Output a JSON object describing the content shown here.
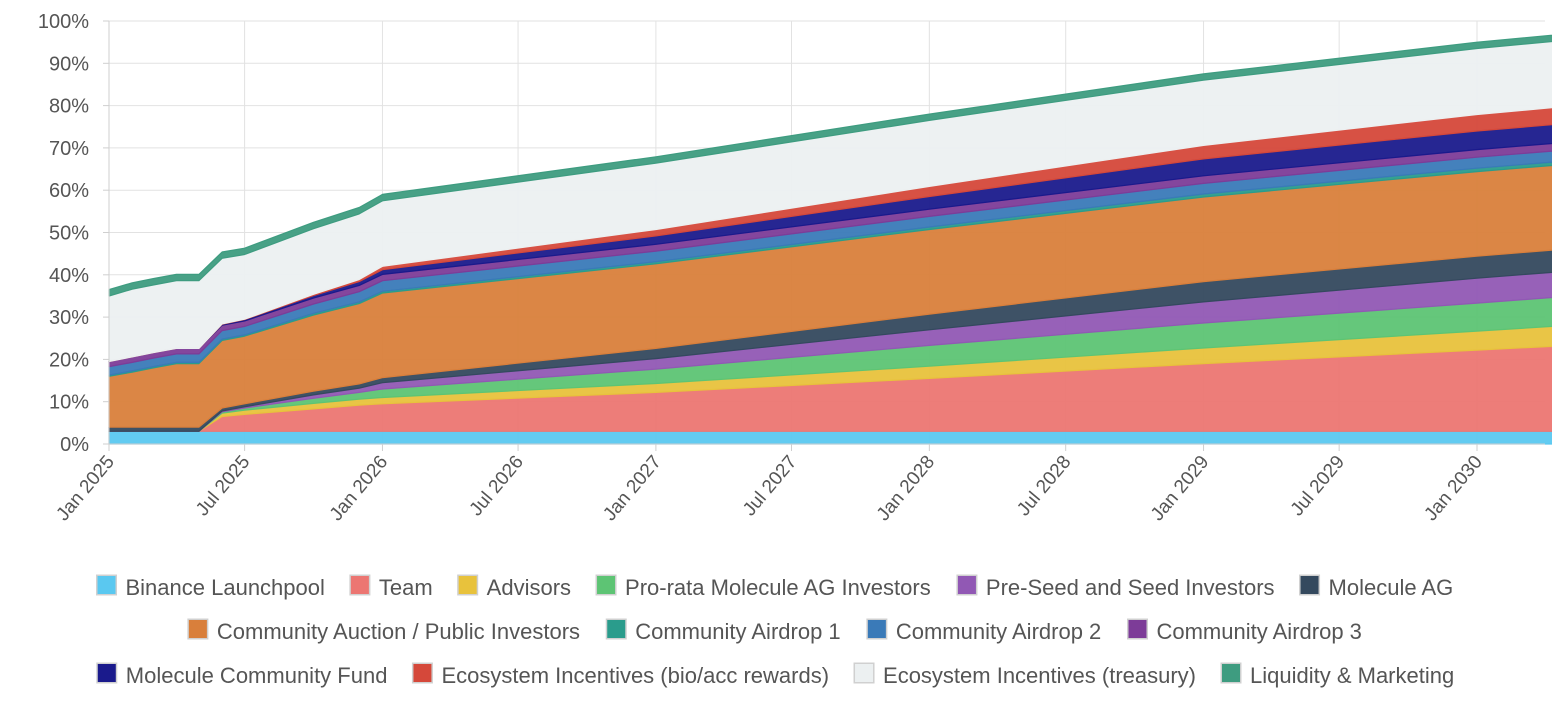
{
  "chart_data": {
    "type": "area",
    "stacked": true,
    "y_format": "percent",
    "ylim": [
      0,
      100
    ],
    "yticks": [
      "0%",
      "10%",
      "20%",
      "30%",
      "40%",
      "50%",
      "60%",
      "70%",
      "80%",
      "90%",
      "100%"
    ],
    "xticks": [
      "Jan 2025",
      "Jul 2025",
      "Jan 2026",
      "Jul 2026",
      "Jan 2027",
      "Jul 2027",
      "Jan 2028",
      "Jul 2028",
      "Jan 2029",
      "Jul 2029",
      "Jan 2030"
    ],
    "x": [
      "2025-01-01",
      "2025-02-01",
      "2025-03-01",
      "2025-04-01",
      "2025-05-01",
      "2025-06-01",
      "2025-07-01",
      "2025-10-01",
      "2025-12-01",
      "2026-01-01",
      "2027-01-01",
      "2028-01-01",
      "2029-01-01",
      "2030-01-01",
      "2030-07-01"
    ],
    "grid": true,
    "legend_position": "bottom",
    "series": [
      {
        "name": "Binance Launchpool",
        "color": "#5ac8f0",
        "values": [
          3,
          3,
          3,
          3,
          3,
          3,
          3,
          3,
          3,
          3,
          3,
          3,
          3,
          3,
          3
        ]
      },
      {
        "name": "Team",
        "color": "#ec7672",
        "values": [
          0,
          0,
          0,
          0,
          0,
          3.5,
          4,
          5.3,
          6.2,
          6.5,
          9.2,
          12.5,
          16,
          19.2,
          20.8
        ]
      },
      {
        "name": "Advisors",
        "color": "#e8c23c",
        "values": [
          0,
          0,
          0,
          0,
          0,
          0.8,
          1,
          1.3,
          1.4,
          1.5,
          2.1,
          2.9,
          3.7,
          4.5,
          4.9
        ]
      },
      {
        "name": "Pro-rata Molecule AG Investors",
        "color": "#5dc474",
        "values": [
          0,
          0,
          0,
          0,
          0,
          0.3,
          0.5,
          1.2,
          1.6,
          2,
          3.4,
          4.9,
          5.9,
          6.6,
          7
        ]
      },
      {
        "name": "Pre-Seed and Seed Investors",
        "color": "#9158b4",
        "values": [
          0,
          0,
          0,
          0,
          0,
          0.2,
          0.3,
          0.8,
          1,
          1.5,
          2.5,
          3.7,
          5,
          5.9,
          6
        ]
      },
      {
        "name": "Molecule AG",
        "color": "#34495e",
        "values": [
          1,
          1,
          1,
          1,
          1,
          0.7,
          0.7,
          0.9,
          1,
          1.2,
          2.4,
          3.7,
          4.8,
          5.2,
          5.3
        ]
      },
      {
        "name": "Community Auction / Public Investors",
        "color": "#d97f3b",
        "values": [
          12,
          13,
          14,
          15,
          15,
          16,
          16,
          18,
          19,
          20,
          20,
          20,
          20,
          20,
          20
        ]
      },
      {
        "name": "Community Airdrop 1",
        "color": "#2a9c8c",
        "values": [
          0.3,
          0.3,
          0.3,
          0.3,
          0.3,
          0.3,
          0.3,
          0.4,
          0.4,
          0.4,
          0.5,
          0.6,
          0.7,
          0.8,
          0.8
        ]
      },
      {
        "name": "Community Airdrop 2",
        "color": "#3a7ab8",
        "values": [
          2,
          2,
          2,
          2,
          2,
          2,
          2,
          2.2,
          2.4,
          2.5,
          2.5,
          2.5,
          2.5,
          2.6,
          2.6
        ]
      },
      {
        "name": "Community Airdrop 3",
        "color": "#7d3c98",
        "values": [
          1.2,
          1.3,
          1.3,
          1.3,
          1.3,
          1.3,
          1.3,
          1.4,
          1.5,
          1.5,
          1.6,
          1.7,
          1.8,
          1.8,
          1.8
        ]
      },
      {
        "name": "Molecule Community Fund",
        "color": "#1a1a8c",
        "values": [
          0,
          0,
          0,
          0,
          0,
          0.2,
          0.3,
          0.6,
          0.9,
          1.1,
          2,
          3,
          4,
          4.4,
          4.5
        ]
      },
      {
        "name": "Ecosystem Incentives (bio/acc rewards)",
        "color": "#d5483a",
        "values": [
          0,
          0,
          0,
          0,
          0,
          0.1,
          0.1,
          0.3,
          0.5,
          0.8,
          1.5,
          2.4,
          3.2,
          3.9,
          4.1
        ]
      },
      {
        "name": "Ecosystem Incentives (treasury)",
        "color": "#ecf0f1",
        "values": [
          15.5,
          16,
          16,
          16,
          16,
          15.5,
          15.3,
          15.5,
          15.5,
          15.5,
          15.7,
          15.6,
          15.4,
          15.6,
          15.7
        ]
      },
      {
        "name": "Liquidity & Marketing",
        "color": "#3e9c80",
        "values": [
          1.5,
          1.5,
          1.5,
          1.5,
          1.5,
          1.5,
          1.5,
          1.5,
          1.5,
          1.5,
          1.5,
          1.5,
          1.5,
          1.5,
          1.5
        ]
      }
    ]
  }
}
